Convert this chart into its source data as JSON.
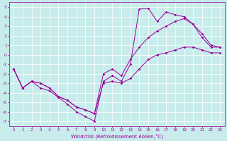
{
  "xlabel": "Windchill (Refroidissement éolien,°C)",
  "bg_color": "#c8ecec",
  "line_color": "#990099",
  "xlim": [
    -0.5,
    23.5
  ],
  "ylim": [
    -7.5,
    5.5
  ],
  "xtick_labels": [
    "0",
    "1",
    "2",
    "3",
    "4",
    "5",
    "6",
    "7",
    "8",
    "9",
    "10",
    "11",
    "12",
    "13",
    "14",
    "15",
    "16",
    "17",
    "18",
    "19",
    "20",
    "21",
    "22",
    "23"
  ],
  "xtick_vals": [
    0,
    1,
    2,
    3,
    4,
    5,
    6,
    7,
    8,
    9,
    10,
    11,
    12,
    13,
    14,
    15,
    16,
    17,
    18,
    19,
    20,
    21,
    22,
    23
  ],
  "ytick_vals": [
    -7,
    -6,
    -5,
    -4,
    -3,
    -2,
    -1,
    0,
    1,
    2,
    3,
    4,
    5
  ],
  "line1_x": [
    0,
    1,
    2,
    3,
    4,
    5,
    6,
    7,
    8,
    9,
    10,
    11,
    12,
    13,
    14,
    15,
    16,
    17,
    18,
    19,
    20,
    21,
    22,
    23
  ],
  "line1_y": [
    -1.5,
    -3.5,
    -2.8,
    -3.5,
    -3.8,
    -4.5,
    -5.2,
    -6.0,
    -6.5,
    -7.0,
    -2.8,
    -2.2,
    -2.8,
    -1.0,
    4.8,
    4.9,
    3.5,
    4.5,
    4.2,
    4.0,
    3.2,
    1.8,
    0.8,
    0.8
  ],
  "line2_x": [
    0,
    1,
    2,
    3,
    4,
    5,
    6,
    7,
    8,
    9,
    10,
    11,
    12,
    13,
    14,
    15,
    16,
    17,
    18,
    19,
    20,
    21,
    22,
    23
  ],
  "line2_y": [
    -1.5,
    -3.5,
    -2.8,
    -3.0,
    -3.5,
    -4.4,
    -4.8,
    -5.5,
    -5.8,
    -6.2,
    -2.0,
    -1.5,
    -2.2,
    -0.5,
    0.8,
    1.8,
    2.5,
    3.0,
    3.5,
    3.8,
    3.2,
    2.2,
    1.0,
    0.8
  ],
  "line3_x": [
    0,
    1,
    2,
    3,
    4,
    5,
    6,
    7,
    8,
    9,
    10,
    11,
    12,
    13,
    14,
    15,
    16,
    17,
    18,
    19,
    20,
    21,
    22,
    23
  ],
  "line3_y": [
    -1.5,
    -3.5,
    -2.8,
    -3.0,
    -3.5,
    -4.4,
    -4.8,
    -5.5,
    -5.8,
    -6.2,
    -3.0,
    -2.8,
    -3.0,
    -2.5,
    -1.5,
    -0.5,
    0.0,
    0.2,
    0.5,
    0.8,
    0.8,
    0.5,
    0.2,
    0.2
  ]
}
